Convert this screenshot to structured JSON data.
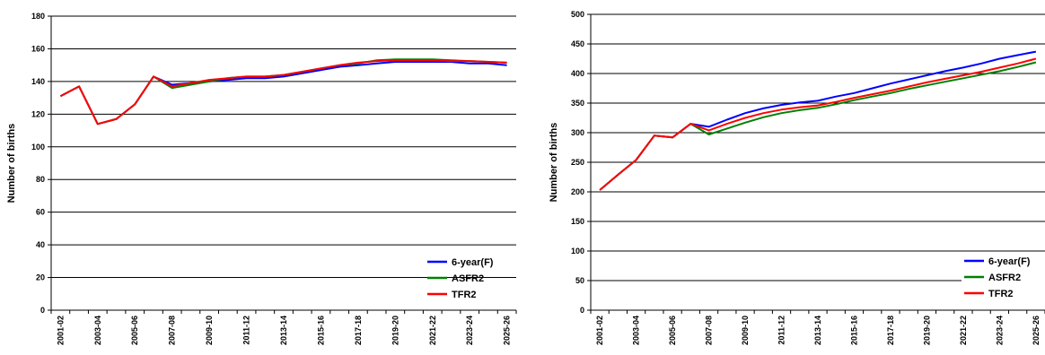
{
  "chart_data": [
    {
      "type": "line",
      "ylabel": "Number of births",
      "ylim": [
        0,
        180
      ],
      "yticks": [
        0,
        20,
        40,
        60,
        80,
        100,
        120,
        140,
        160,
        180
      ],
      "grid": true,
      "legend_position": "bottom-right",
      "x": [
        "2001-02",
        "2002-03",
        "2003-04",
        "2004-05",
        "2005-06",
        "2006-07",
        "2007-08",
        "2008-09",
        "2009-10",
        "2010-11",
        "2011-12",
        "2012-13",
        "2013-14",
        "2014-15",
        "2015-16",
        "2016-17",
        "2017-18",
        "2018-19",
        "2019-20",
        "2020-21",
        "2021-22",
        "2022-23",
        "2023-24",
        "2024-25",
        "2025-26"
      ],
      "xtick_labels": [
        "2001-02",
        "2003-04",
        "2005-06",
        "2007-08",
        "2009-10",
        "2011-12",
        "2013-14",
        "2015-16",
        "2017-18",
        "2019-20",
        "2021-22",
        "2023-24",
        "2025-26"
      ],
      "series": [
        {
          "name": "6-year(F)",
          "color": "#0000ff",
          "values": [
            131,
            137,
            114,
            117,
            126,
            143,
            138,
            139,
            140,
            141,
            142,
            142,
            143,
            145,
            147,
            149,
            150,
            151,
            152,
            152,
            152,
            152,
            151,
            151,
            150
          ]
        },
        {
          "name": "ASFR2",
          "color": "#008000",
          "values": [
            131,
            137,
            114,
            117,
            126,
            143,
            136,
            138,
            140,
            142,
            143,
            143,
            144,
            146,
            148,
            150,
            151,
            153,
            153.5,
            153.5,
            153.5,
            153,
            152.5,
            152,
            151.5
          ]
        },
        {
          "name": "TFR2",
          "color": "#ff0000",
          "values": [
            131,
            137,
            114,
            117,
            126,
            143,
            137,
            139,
            141,
            142,
            143,
            143,
            144,
            146,
            148,
            150,
            151.5,
            152.5,
            153,
            153,
            153,
            152.5,
            152.5,
            152,
            151.5
          ]
        }
      ]
    },
    {
      "type": "line",
      "ylabel": "Number of births",
      "ylim": [
        0,
        500
      ],
      "yticks": [
        0,
        50,
        100,
        150,
        200,
        250,
        300,
        350,
        400,
        450,
        500
      ],
      "grid": true,
      "legend_position": "bottom-right",
      "x": [
        "2001-02",
        "2002-03",
        "2003-04",
        "2004-05",
        "2005-06",
        "2006-07",
        "2007-08",
        "2008-09",
        "2009-10",
        "2010-11",
        "2011-12",
        "2012-13",
        "2013-14",
        "2014-15",
        "2015-16",
        "2016-17",
        "2017-18",
        "2018-19",
        "2019-20",
        "2020-21",
        "2021-22",
        "2022-23",
        "2023-24",
        "2024-25",
        "2025-26"
      ],
      "xtick_labels": [
        "2001-02",
        "2003-04",
        "2005-06",
        "2007-08",
        "2009-10",
        "2011-12",
        "2013-14",
        "2015-16",
        "2017-18",
        "2019-20",
        "2021-22",
        "2023-24",
        "2025-26"
      ],
      "series": [
        {
          "name": "6-year(F)",
          "color": "#0000ff",
          "values": [
            203,
            229,
            254,
            295,
            292,
            315,
            310,
            322,
            333,
            341,
            347,
            351,
            354,
            361,
            367,
            375,
            383,
            390,
            397,
            404,
            410,
            417,
            425,
            431,
            437
          ]
        },
        {
          "name": "ASFR2",
          "color": "#008000",
          "values": [
            203,
            229,
            254,
            295,
            292,
            315,
            297,
            307,
            317,
            326,
            333,
            338,
            342,
            348,
            355,
            361,
            367,
            374,
            380,
            386,
            392,
            398,
            404,
            411,
            419
          ]
        },
        {
          "name": "TFR2",
          "color": "#ff0000",
          "values": [
            203,
            229,
            254,
            295,
            292,
            315,
            304,
            315,
            325,
            333,
            339,
            343,
            346,
            352,
            359,
            365,
            371,
            378,
            385,
            391,
            397,
            403,
            410,
            417,
            425
          ]
        }
      ]
    }
  ]
}
